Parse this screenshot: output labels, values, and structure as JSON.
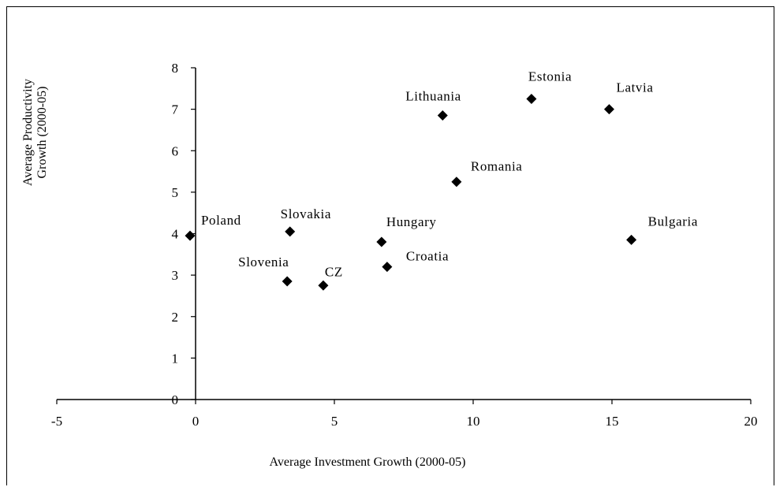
{
  "chart_data": {
    "type": "scatter",
    "title": "",
    "xlabel": "Average Investment Growth (2000-05)",
    "ylabel_lines": [
      "Average Productivity",
      "Growth (2000-05)"
    ],
    "xlim": [
      -5,
      20
    ],
    "ylim": [
      0,
      8
    ],
    "xticks": [
      -5,
      0,
      5,
      10,
      15,
      20
    ],
    "yticks": [
      0,
      1,
      2,
      3,
      4,
      5,
      6,
      7,
      8
    ],
    "grid": false,
    "legend": "none",
    "marker": "diamond",
    "marker_color": "#000000",
    "points": [
      {
        "label": "Poland",
        "x": -0.2,
        "y": 3.95
      },
      {
        "label": "Slovakia",
        "x": 3.4,
        "y": 4.05
      },
      {
        "label": "Slovenia",
        "x": 3.3,
        "y": 2.85
      },
      {
        "label": "CZ",
        "x": 4.6,
        "y": 2.75
      },
      {
        "label": "Hungary",
        "x": 6.7,
        "y": 3.8
      },
      {
        "label": "Croatia",
        "x": 6.9,
        "y": 3.2
      },
      {
        "label": "Lithuania",
        "x": 8.9,
        "y": 6.85
      },
      {
        "label": "Romania",
        "x": 9.4,
        "y": 5.25
      },
      {
        "label": "Estonia",
        "x": 12.1,
        "y": 7.25
      },
      {
        "label": "Latvia",
        "x": 14.9,
        "y": 7.0
      },
      {
        "label": "Bulgaria",
        "x": 15.7,
        "y": 3.85
      }
    ]
  }
}
